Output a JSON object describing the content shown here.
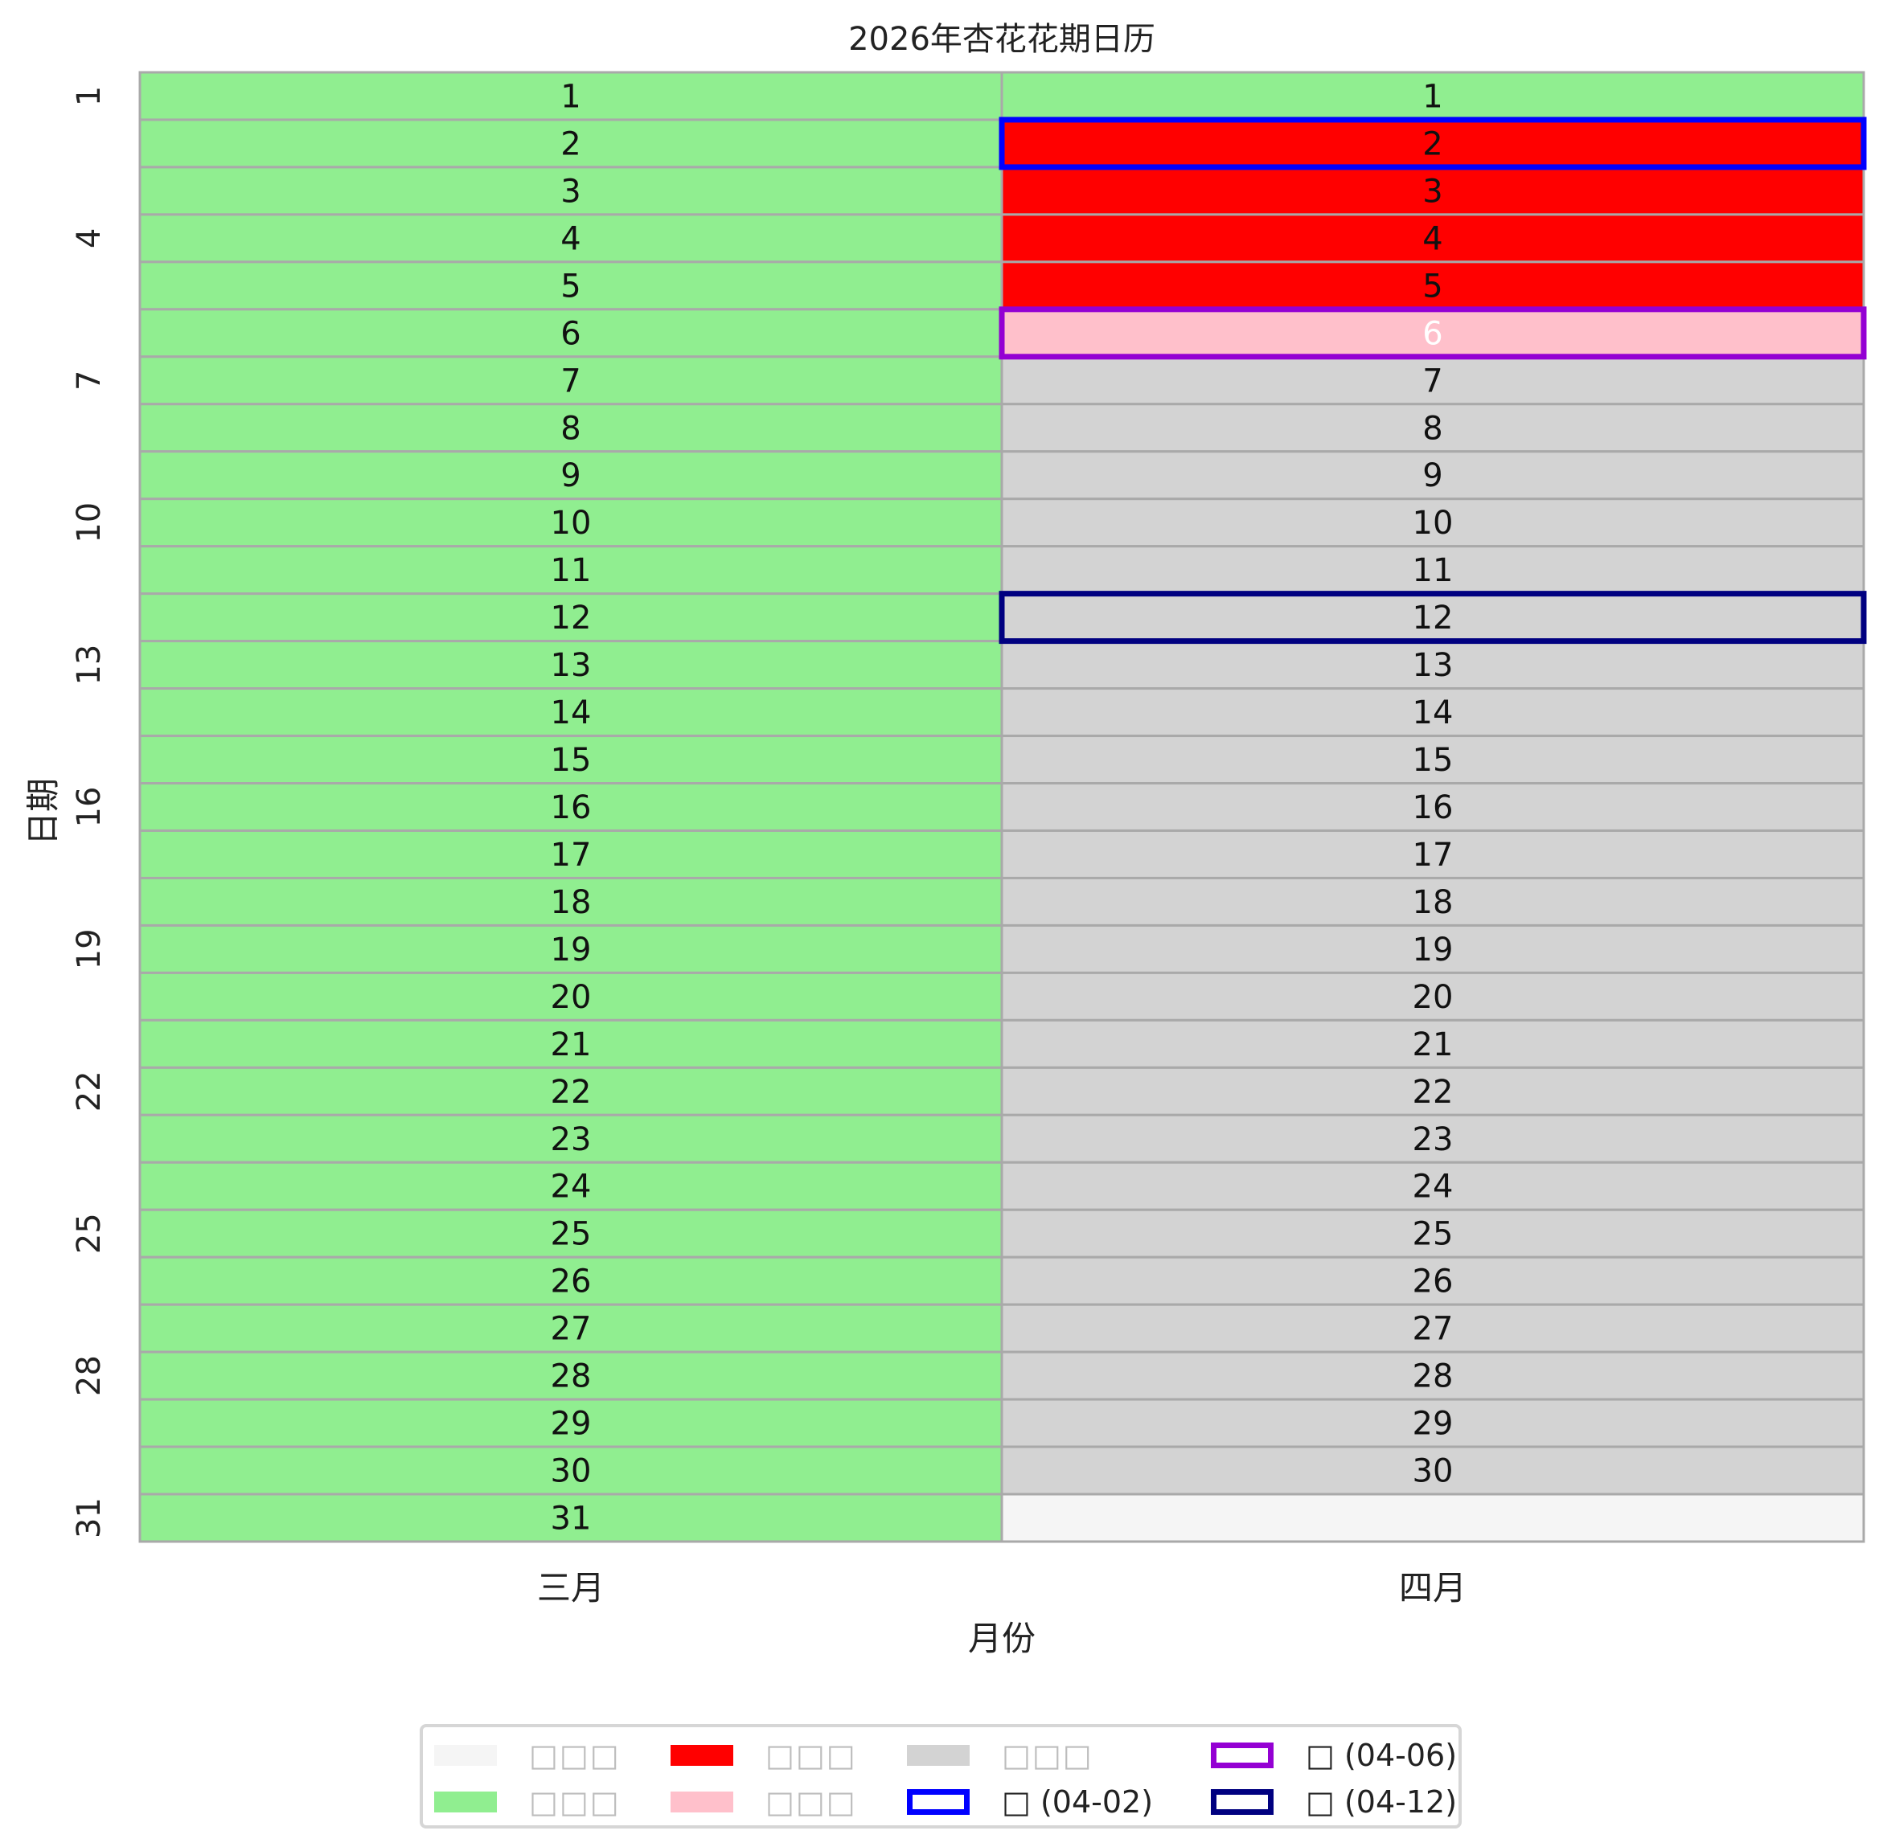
{
  "chart_data": {
    "type": "heatmap",
    "title": "2026年杏花花期日历",
    "xlabel": "月份",
    "ylabel": "日期",
    "x_categories": [
      "三月",
      "四月"
    ],
    "y_ticks": [
      "1",
      "4",
      "7",
      "10",
      "13",
      "16",
      "19",
      "22",
      "25",
      "28",
      "31"
    ],
    "days": 31,
    "columns": [
      {
        "name": "三月",
        "days_in_month": 31,
        "states": [
          "g",
          "g",
          "g",
          "g",
          "g",
          "g",
          "g",
          "g",
          "g",
          "g",
          "g",
          "g",
          "g",
          "g",
          "g",
          "g",
          "g",
          "g",
          "g",
          "g",
          "g",
          "g",
          "g",
          "g",
          "g",
          "g",
          "g",
          "g",
          "g",
          "g",
          "g"
        ]
      },
      {
        "name": "四月",
        "days_in_month": 30,
        "states": [
          "g",
          "r",
          "r",
          "r",
          "r",
          "p",
          "d",
          "d",
          "d",
          "d",
          "d",
          "d",
          "d",
          "d",
          "d",
          "d",
          "d",
          "d",
          "d",
          "d",
          "d",
          "d",
          "d",
          "d",
          "d",
          "d",
          "d",
          "d",
          "d",
          "d",
          "e"
        ]
      }
    ],
    "state_colors": {
      "e": "#f5f5f5",
      "g": "#90ee90",
      "r": "#ff0000",
      "p": "#ffc0cb",
      "d": "#d3d3d3"
    },
    "highlights": [
      {
        "month": "四月",
        "day": 2,
        "color": "#0000ff"
      },
      {
        "month": "四月",
        "day": 6,
        "color": "#9400d3"
      },
      {
        "month": "四月",
        "day": 12,
        "color": "#000080"
      }
    ],
    "white_text_days": [
      {
        "month": "四月",
        "day": 6
      }
    ],
    "grid_color": "#a9a9a9",
    "legend_position": "bottom-center",
    "legend": [
      {
        "label": "□□□",
        "color": "#f5f5f5",
        "kind": "fill"
      },
      {
        "label": "□□□",
        "color": "#90ee90",
        "kind": "fill"
      },
      {
        "label": "□□□",
        "color": "#ff0000",
        "kind": "fill"
      },
      {
        "label": "□□□",
        "color": "#ffc0cb",
        "kind": "fill"
      },
      {
        "label": "□□□",
        "color": "#d3d3d3",
        "kind": "fill"
      },
      {
        "label": "□ (04-02)",
        "color": "#0000ff",
        "kind": "outline"
      },
      {
        "label": "□ (04-06)",
        "color": "#9400d3",
        "kind": "outline"
      },
      {
        "label": "□ (04-12)",
        "color": "#000080",
        "kind": "outline"
      }
    ]
  }
}
